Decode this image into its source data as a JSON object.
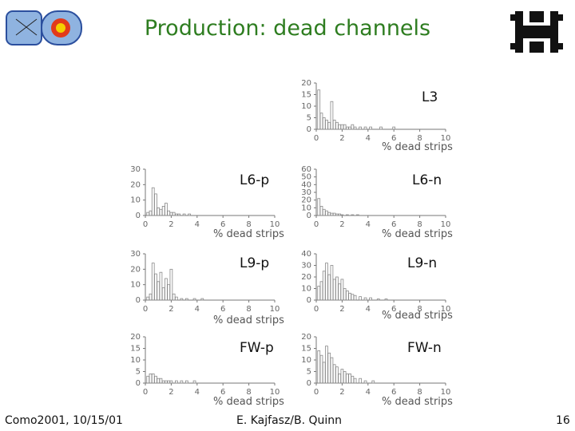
{
  "title": "Production: dead channels",
  "footer": {
    "left": "Como2001, 10/15/01",
    "center": "E. Kajfasz/B. Quinn",
    "page": "16"
  },
  "colors": {
    "title": "#2e7d20",
    "bars": "#888888",
    "axis": "#777777"
  },
  "chart_data": [
    {
      "type": "bar",
      "label": "L3",
      "xlabel": "% dead strips",
      "xlim": [
        0,
        10
      ],
      "ylim": [
        0,
        20
      ],
      "xticks": [
        0,
        2,
        4,
        6,
        8,
        10
      ],
      "yticks": [
        0,
        5,
        10,
        15,
        20
      ],
      "bins": [
        0.2,
        0.4,
        0.6,
        0.8,
        1.0,
        1.2,
        1.4,
        1.6,
        1.8,
        2.0,
        2.2,
        2.4,
        2.6,
        2.8,
        3.0,
        3.4,
        3.8,
        4.2,
        5.0,
        6.0
      ],
      "values": [
        17,
        7,
        5,
        4,
        3,
        12,
        4,
        3,
        2,
        2,
        2,
        1,
        1,
        2,
        1,
        1,
        1,
        1,
        1,
        1
      ]
    },
    {
      "type": "bar",
      "label": "L6-p",
      "xlabel": "% dead strips",
      "xlim": [
        0,
        10
      ],
      "ylim": [
        0,
        30
      ],
      "xticks": [
        0,
        2,
        4,
        6,
        8,
        10
      ],
      "yticks": [
        0,
        10,
        20,
        30
      ],
      "bins": [
        0.2,
        0.4,
        0.6,
        0.8,
        1.0,
        1.2,
        1.4,
        1.6,
        1.8,
        2.0,
        2.2,
        2.4,
        2.6,
        3.0,
        3.4
      ],
      "values": [
        2,
        3,
        18,
        14,
        5,
        4,
        6,
        8,
        3,
        2,
        2,
        1,
        1,
        1,
        1
      ]
    },
    {
      "type": "bar",
      "label": "L6-n",
      "xlabel": "% dead strips",
      "xlim": [
        0,
        10
      ],
      "ylim": [
        0,
        60
      ],
      "xticks": [
        0,
        2,
        4,
        6,
        8,
        10
      ],
      "yticks": [
        0,
        10,
        20,
        30,
        40,
        50,
        60
      ],
      "bins": [
        0.2,
        0.4,
        0.6,
        0.8,
        1.0,
        1.2,
        1.4,
        1.6,
        1.8,
        2.0,
        2.4,
        2.8,
        3.2
      ],
      "values": [
        22,
        12,
        8,
        6,
        4,
        3,
        3,
        2,
        2,
        1,
        1,
        1,
        1
      ]
    },
    {
      "type": "bar",
      "label": "L9-p",
      "xlabel": "% dead strips",
      "xlim": [
        0,
        10
      ],
      "ylim": [
        0,
        30
      ],
      "xticks": [
        0,
        2,
        4,
        6,
        8,
        10
      ],
      "yticks": [
        0,
        10,
        20,
        30
      ],
      "bins": [
        0.2,
        0.4,
        0.6,
        0.8,
        1.0,
        1.2,
        1.4,
        1.6,
        1.8,
        2.0,
        2.2,
        2.4,
        2.8,
        3.2,
        3.8,
        4.4
      ],
      "values": [
        2,
        4,
        24,
        17,
        12,
        18,
        8,
        14,
        10,
        20,
        4,
        2,
        1,
        1,
        1,
        1
      ]
    },
    {
      "type": "bar",
      "label": "L9-n",
      "xlabel": "% dead strips",
      "xlim": [
        0,
        10
      ],
      "ylim": [
        0,
        40
      ],
      "xticks": [
        0,
        2,
        4,
        6,
        8,
        10
      ],
      "yticks": [
        0,
        10,
        20,
        30,
        40
      ],
      "bins": [
        0.2,
        0.4,
        0.6,
        0.8,
        1.0,
        1.2,
        1.4,
        1.6,
        1.8,
        2.0,
        2.2,
        2.4,
        2.6,
        2.8,
        3.0,
        3.4,
        3.8,
        4.2,
        4.8,
        5.4
      ],
      "values": [
        12,
        16,
        25,
        32,
        22,
        30,
        18,
        20,
        14,
        18,
        10,
        8,
        6,
        5,
        4,
        3,
        2,
        2,
        1,
        1
      ]
    },
    {
      "type": "bar",
      "label": "FW-p",
      "xlabel": "% dead strips",
      "xlim": [
        0,
        10
      ],
      "ylim": [
        0,
        20
      ],
      "xticks": [
        0,
        2,
        4,
        6,
        8,
        10
      ],
      "yticks": [
        0,
        5,
        10,
        15,
        20
      ],
      "bins": [
        0.2,
        0.4,
        0.6,
        0.8,
        1.0,
        1.2,
        1.4,
        1.6,
        1.8,
        2.0,
        2.4,
        2.8,
        3.2,
        3.8
      ],
      "values": [
        3,
        4,
        4,
        3,
        2,
        2,
        1,
        1,
        1,
        1,
        1,
        1,
        1,
        1
      ]
    },
    {
      "type": "bar",
      "label": "FW-n",
      "xlabel": "% dead strips",
      "xlim": [
        0,
        10
      ],
      "ylim": [
        0,
        20
      ],
      "xticks": [
        0,
        2,
        4,
        6,
        8,
        10
      ],
      "yticks": [
        0,
        5,
        10,
        15,
        20
      ],
      "bins": [
        0.2,
        0.4,
        0.6,
        0.8,
        1.0,
        1.2,
        1.4,
        1.6,
        1.8,
        2.0,
        2.2,
        2.4,
        2.6,
        2.8,
        3.0,
        3.4,
        3.8,
        4.4
      ],
      "values": [
        14,
        12,
        9,
        16,
        13,
        11,
        8,
        7,
        4,
        6,
        5,
        4,
        4,
        3,
        2,
        2,
        1,
        1
      ]
    }
  ]
}
